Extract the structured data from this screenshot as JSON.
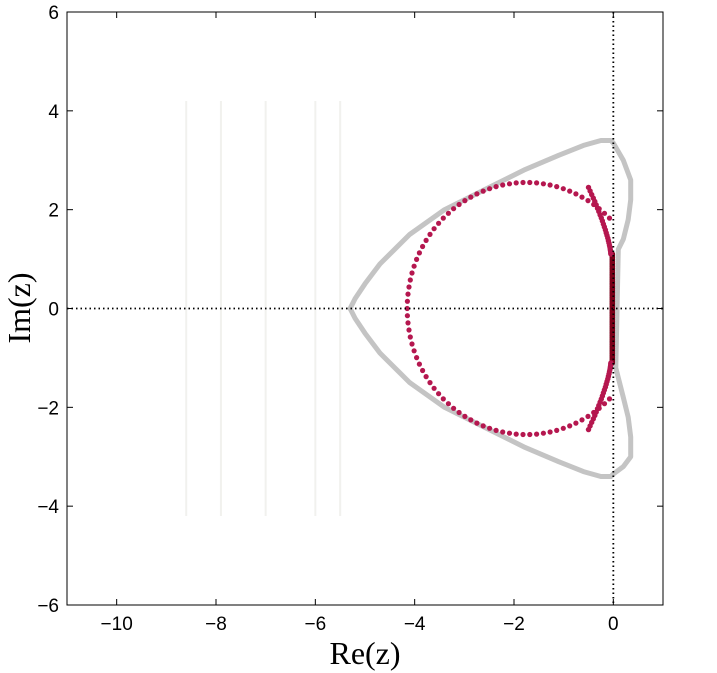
{
  "chart_data": {
    "type": "scatter",
    "title": "",
    "xlabel": "Re(z)",
    "ylabel": "Im(z)",
    "xlim": [
      -11,
      1
    ],
    "ylim": [
      -6,
      6
    ],
    "xticks": [
      -10,
      -8,
      -6,
      -4,
      -2,
      0
    ],
    "yticks": [
      -6,
      -4,
      -2,
      0,
      2,
      4,
      6
    ],
    "xtick_labels": [
      "−10",
      "−8",
      "−6",
      "−4",
      "−2",
      "0"
    ],
    "ytick_labels": [
      "−6",
      "−4",
      "−2",
      "0",
      "2",
      "4",
      "6"
    ],
    "grid": false,
    "reference_lines": {
      "x": 0,
      "y": 0,
      "style": "dotted"
    },
    "colors": {
      "outer_curve": "#c4c4c4",
      "inner_points": "#b5174f",
      "inner_points_dense": "#7a0019",
      "reference": "#000000"
    },
    "series": [
      {
        "kind": "curve",
        "x": [
          0.0,
          -0.05,
          -0.25,
          -0.6,
          -1.1,
          -1.8,
          -2.6,
          -3.4,
          -4.1,
          -4.7,
          -5.0,
          -5.2,
          -5.3,
          -5.2,
          -5.0,
          -4.7,
          -4.1,
          -3.4,
          -2.6,
          -1.8,
          -1.1,
          -0.6,
          -0.25,
          -0.05,
          0.0,
          0.2,
          0.35,
          0.35,
          0.3,
          0.2,
          0.1,
          0.05,
          0.1,
          0.2,
          0.3,
          0.35,
          0.35,
          0.2,
          0.0
        ],
        "y": [
          3.35,
          3.4,
          3.4,
          3.3,
          3.1,
          2.8,
          2.4,
          2.0,
          1.5,
          0.9,
          0.5,
          0.2,
          0.0,
          -0.2,
          -0.5,
          -0.9,
          -1.5,
          -2.0,
          -2.4,
          -2.8,
          -3.1,
          -3.3,
          -3.4,
          -3.4,
          -3.35,
          -3.2,
          -3.0,
          -2.6,
          -2.2,
          -1.8,
          -1.4,
          -1.2,
          1.2,
          1.4,
          1.8,
          2.2,
          2.6,
          3.0,
          3.35
        ]
      },
      {
        "kind": "points",
        "center": [
          -1.75,
          0
        ],
        "radius": 2.4,
        "y_radius": 2.55,
        "count": 110,
        "dense_segment_x": 0.0,
        "dense_segment_y": [
          -1.1,
          1.1
        ]
      }
    ]
  }
}
